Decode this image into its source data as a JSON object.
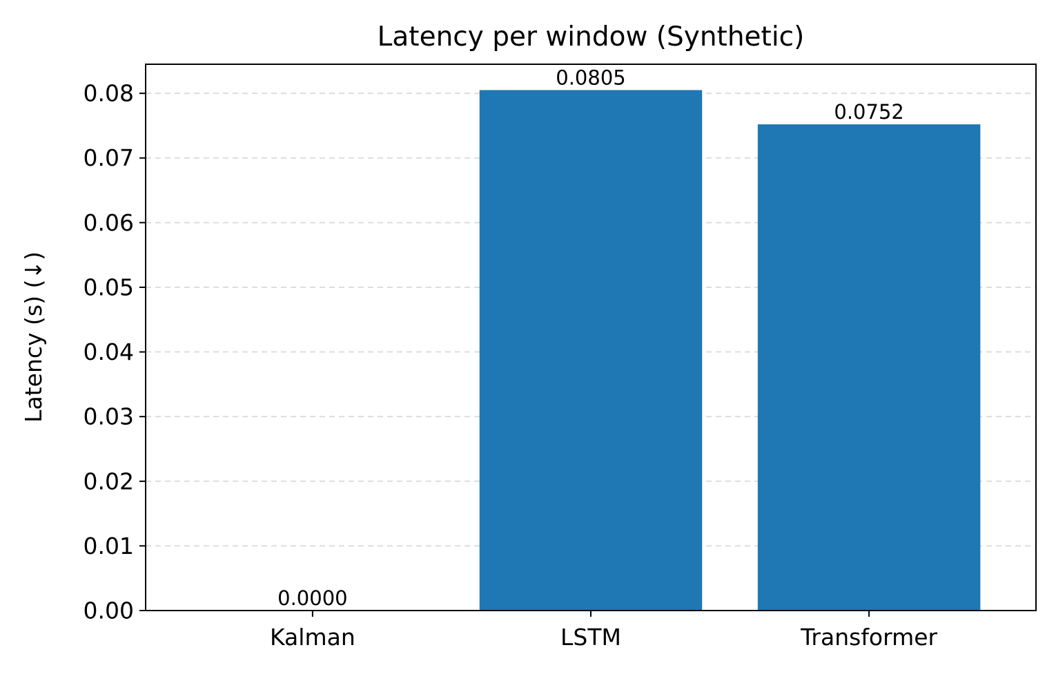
{
  "chart_data": {
    "type": "bar",
    "title": "Latency per window (Synthetic)",
    "xlabel": "",
    "ylabel": "Latency (s) (↓)",
    "categories": [
      "Kalman",
      "LSTM",
      "Transformer"
    ],
    "values": [
      0.0,
      0.0805,
      0.0752
    ],
    "data_labels": [
      "0.0000",
      "0.0805",
      "0.0752"
    ],
    "ylim": [
      0,
      0.0845
    ],
    "yticks": [
      0.0,
      0.01,
      0.02,
      0.03,
      0.04,
      0.05,
      0.06,
      0.07,
      0.08
    ],
    "ytick_labels": [
      "0.00",
      "0.01",
      "0.02",
      "0.03",
      "0.04",
      "0.05",
      "0.06",
      "0.07",
      "0.08"
    ],
    "grid": "y-dashed",
    "bar_color": "#1f77b4",
    "grid_color": "#dddddd"
  }
}
